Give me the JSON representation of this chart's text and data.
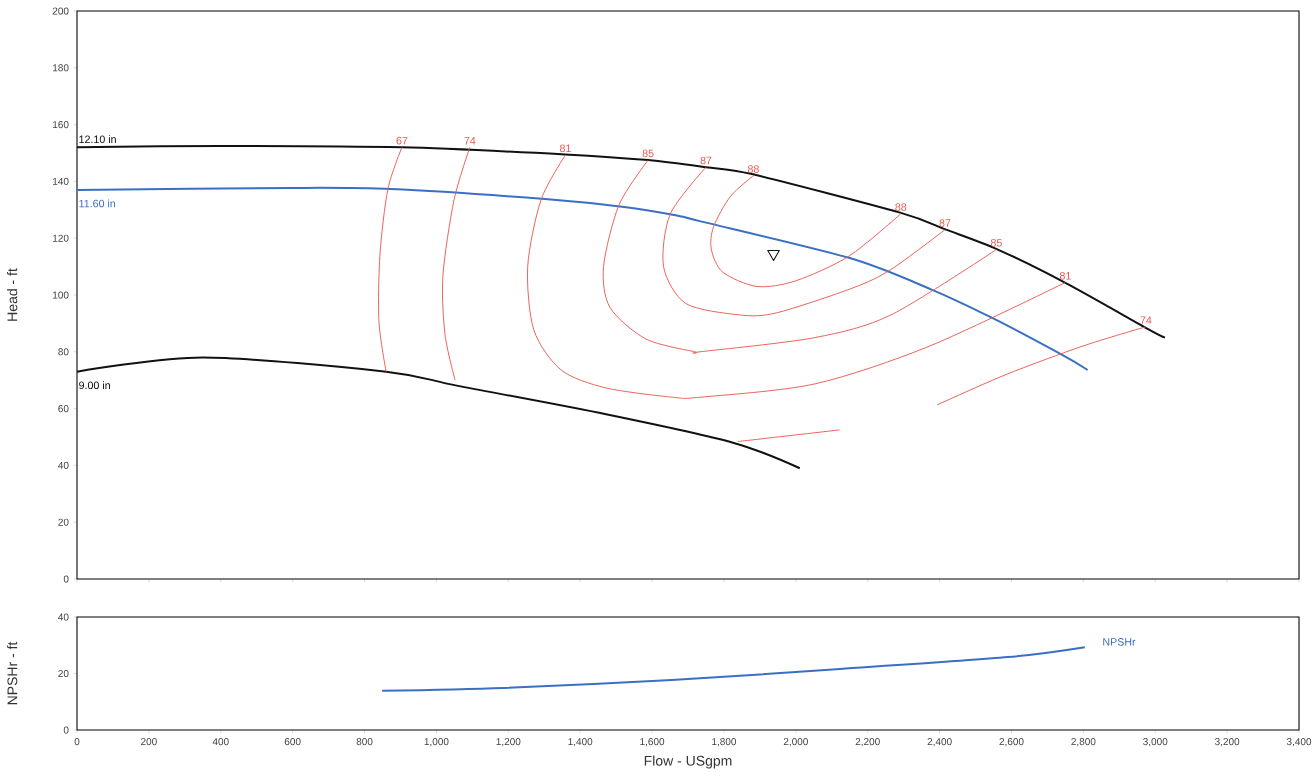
{
  "chart_data": [
    {
      "type": "line",
      "ylabel": "Head - ft",
      "xlim": [
        0,
        3400
      ],
      "ylim": [
        0,
        200
      ],
      "xticks": [
        {
          "value": 0,
          "label": null
        },
        {
          "value": 200,
          "label": null
        },
        {
          "value": 400,
          "label": null
        },
        {
          "value": 600,
          "label": null
        },
        {
          "value": 800,
          "label": null
        },
        {
          "value": 1000,
          "label": null
        },
        {
          "value": 1200,
          "label": null
        },
        {
          "value": 1400,
          "label": null
        },
        {
          "value": 1600,
          "label": null
        },
        {
          "value": 1800,
          "label": null
        },
        {
          "value": 2000,
          "label": null
        },
        {
          "value": 2200,
          "label": null
        },
        {
          "value": 2400,
          "label": null
        },
        {
          "value": 2600,
          "label": null
        },
        {
          "value": 2800,
          "label": null
        },
        {
          "value": 3000,
          "label": null
        },
        {
          "value": 3200,
          "label": null
        },
        {
          "value": 3400,
          "label": null
        }
      ],
      "yticks": [
        0,
        20,
        40,
        60,
        80,
        100,
        120,
        140,
        160,
        180,
        200
      ],
      "tick_labels": "y",
      "series": [
        {
          "name": "12.10 in",
          "color": "#111111",
          "x": [
            0,
            400,
            904,
            1358,
            1589,
            1750,
            1881,
            2290,
            2418,
            2562,
            2754,
            2980,
            3027
          ],
          "values": [
            152,
            152.5,
            152,
            149.5,
            147.5,
            145,
            142.5,
            129,
            123,
            116,
            104,
            88,
            85
          ]
        },
        {
          "name": "11.60 in",
          "color": "#3a6fc4",
          "x": [
            0,
            600,
            874,
            1302,
            1522,
            1669,
            1733,
            2150,
            2376,
            2545,
            2740,
            2812
          ],
          "values": [
            137,
            137.7,
            137.3,
            133.8,
            131,
            128,
            126,
            113,
            102,
            92,
            79,
            73.6
          ]
        },
        {
          "name": "9.00 in",
          "color": "#111111",
          "x": [
            0,
            350,
            860,
            1060,
            1472,
            1825,
            2011
          ],
          "values": [
            73,
            78,
            73,
            68,
            58,
            48,
            39
          ]
        },
        {
          "color": "#e8584f",
          "x": [
            904,
            865,
            843,
            840,
            860,
            null,
            1839,
            2122
          ],
          "values": [
            152,
            137.3,
            114.4,
            90.8,
            73,
            null,
            48.4,
            52.5
          ]
        },
        {
          "color": "#e8584f",
          "x": [
            1093,
            1049,
            1018,
            1024,
            1052,
            null,
            2393,
            2585,
            2798,
            2974
          ],
          "values": [
            152,
            133.5,
            106.7,
            86,
            70,
            null,
            61.3,
            72,
            82,
            88.8
          ]
        },
        {
          "color": "#e8584f",
          "x": [
            1359,
            1291,
            1254,
            1271,
            1347,
            1471,
            1657,
            1733,
            2053,
            2372,
            2750
          ],
          "values": [
            149.3,
            133.5,
            110,
            87.7,
            73.6,
            67.3,
            64,
            64,
            68.7,
            82,
            104.4
          ]
        },
        {
          "color": "#e8584f",
          "x": [
            1589,
            1508,
            1465,
            1483,
            1583,
            1719,
            1733,
            2053,
            2265,
            2558
          ],
          "values": [
            147.5,
            131.7,
            110,
            95.6,
            84.5,
            80,
            80,
            85,
            93,
            116
          ]
        },
        {
          "color": "#e8584f",
          "x": [
            1750,
            1651,
            1632,
            1694,
            1843,
            1946,
            2159,
            2265,
            2415
          ],
          "values": [
            145,
            128.6,
            110,
            97,
            93,
            93.7,
            102.5,
            109,
            123
          ]
        },
        {
          "color": "#e8584f",
          "x": [
            1882,
            1818,
            1771,
            1765,
            1797,
            1892,
            2000,
            2148,
            2292
          ],
          "values": [
            142,
            134.7,
            124,
            116,
            108,
            103,
            105,
            113.7,
            128.6
          ]
        },
        {
          "type": "scatter",
          "marker": "triangle",
          "color": "#111111",
          "x": [
            1938
          ],
          "values": [
            114.5
          ]
        }
      ],
      "annotations": [
        {
          "text": "67",
          "x": 904,
          "y": 152
        },
        {
          "text": "74",
          "x": 1093,
          "y": 152
        },
        {
          "text": "81",
          "x": 1359,
          "y": 149.3
        },
        {
          "text": "85",
          "x": 1589,
          "y": 147.5
        },
        {
          "text": "87",
          "x": 1750,
          "y": 145
        },
        {
          "text": "88",
          "x": 1882,
          "y": 142
        },
        {
          "text": "88",
          "x": 2292,
          "y": 128.6
        },
        {
          "text": "87",
          "x": 2415,
          "y": 123
        },
        {
          "text": "85",
          "x": 2558,
          "y": 116
        },
        {
          "text": "81",
          "x": 2750,
          "y": 104.4
        },
        {
          "text": "74",
          "x": 2974,
          "y": 88.8
        }
      ]
    },
    {
      "type": "line",
      "ylabel": "NPSHr - ft",
      "xlabel": "Flow - USgpm",
      "xlim": [
        0,
        3400
      ],
      "ylim": [
        0,
        40
      ],
      "xticks": [
        0,
        200,
        400,
        600,
        800,
        {
          "value": 1000,
          "label": "1,000"
        },
        {
          "value": 1200,
          "label": "1,200"
        },
        {
          "value": 1400,
          "label": "1,400"
        },
        {
          "value": 1600,
          "label": "1,600"
        },
        {
          "value": 1800,
          "label": "1,800"
        },
        {
          "value": 2000,
          "label": "2,000"
        },
        {
          "value": 2200,
          "label": "2,200"
        },
        {
          "value": 2400,
          "label": "2,400"
        },
        {
          "value": 2600,
          "label": "2,600"
        },
        {
          "value": 2800,
          "label": "2,800"
        },
        {
          "value": 3000,
          "label": "3,000"
        },
        {
          "value": 3200,
          "label": "3,200"
        },
        {
          "value": 3400,
          "label": "3,400"
        }
      ],
      "yticks": [
        0,
        20,
        40
      ],
      "series": [
        {
          "name": "NPSHr",
          "color": "#3a6fc4",
          "x": [
            849,
            1188,
            1655,
            2123,
            2590,
            2804
          ],
          "values": [
            13.9,
            14.9,
            17.7,
            21.6,
            25.8,
            29.3
          ]
        }
      ]
    }
  ]
}
